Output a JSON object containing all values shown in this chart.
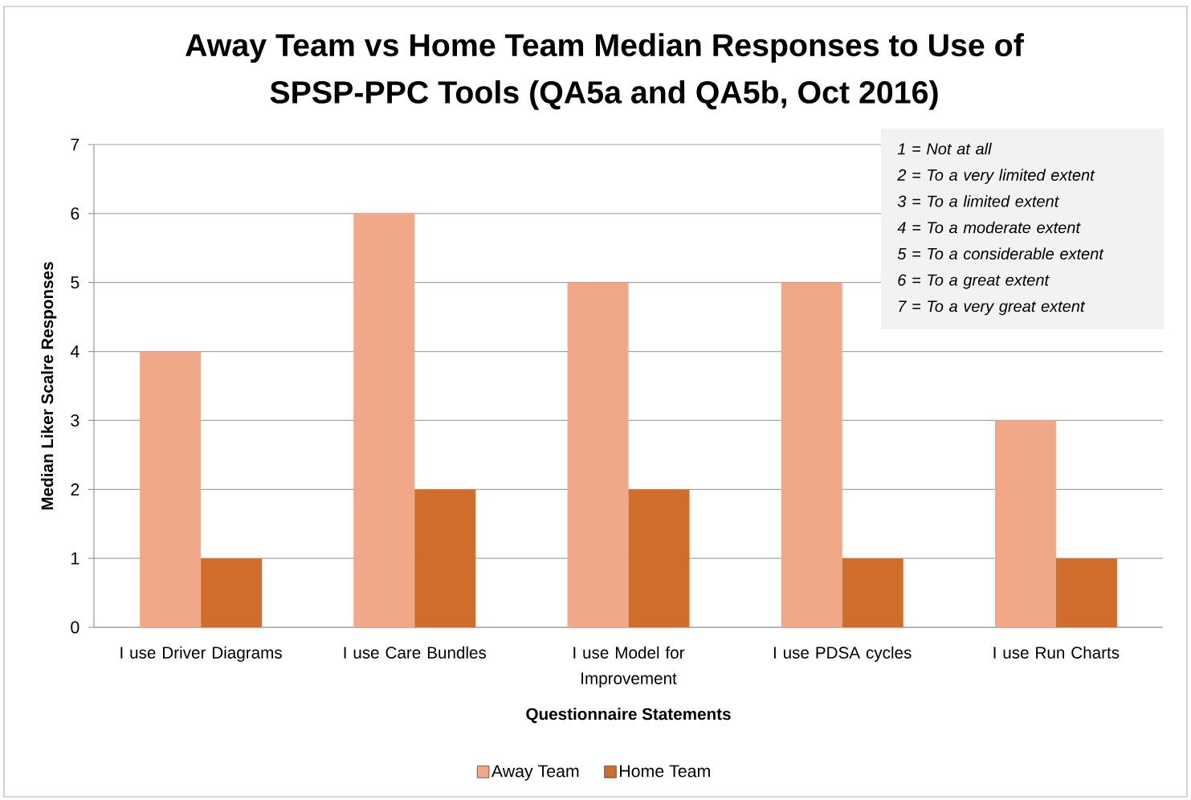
{
  "chart_data": {
    "type": "bar",
    "title": "Away Team vs Home Team Median Responses to Use of SPSP-PPC Tools (QA5a and QA5b, Oct 2016)",
    "xlabel": "Questionnaire Statements",
    "ylabel": "Median Liker Scalre Responses",
    "categories": [
      "I use Driver Diagrams",
      "I use Care Bundles",
      "I use Model for Improvement",
      "I use PDSA cycles",
      "I use Run Charts"
    ],
    "series": [
      {
        "name": "Away Team",
        "color": "#f0a889",
        "values": [
          4,
          6,
          5,
          5,
          3
        ]
      },
      {
        "name": "Home Team",
        "color": "#d16d2c",
        "values": [
          1,
          2,
          2,
          1,
          1
        ]
      }
    ],
    "ylim": [
      0,
      7
    ],
    "yticks": [
      0,
      1,
      2,
      3,
      4,
      5,
      6,
      7
    ],
    "grid": "y",
    "legend": "bottom",
    "annotations": [
      "1 = Not at all",
      "2 = To a very limited extent",
      "3 = To a limited extent",
      "4 = To a moderate extent",
      "5 = To a considerable extent",
      "6 = To a great extent",
      "7 = To a very great extent"
    ]
  }
}
